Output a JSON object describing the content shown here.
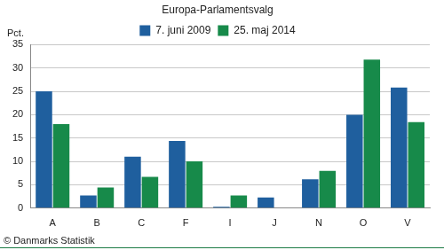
{
  "chart_data": {
    "type": "bar",
    "title": "Europa-Parlamentsvalg",
    "ylabel": "Pct.",
    "annotations": [
      "© Danmarks Statistik"
    ],
    "categories": [
      "A",
      "B",
      "C",
      "F",
      "I",
      "J",
      "N",
      "O",
      "V"
    ],
    "series": [
      {
        "name": "7. juni 2009",
        "color": "#1f5f9e",
        "values": [
          25.0,
          2.7,
          11.0,
          14.4,
          0.3,
          2.3,
          6.2,
          20.0,
          25.8
        ]
      },
      {
        "name": "25. maj 2014",
        "color": "#178a4a",
        "values": [
          18.0,
          4.4,
          6.7,
          10.0,
          2.7,
          null,
          8.0,
          31.8,
          18.4
        ]
      }
    ],
    "ylim": [
      0,
      35
    ],
    "yticks": [
      0,
      5,
      10,
      15,
      20,
      25,
      30,
      35
    ],
    "grid": true,
    "legend": "top"
  }
}
